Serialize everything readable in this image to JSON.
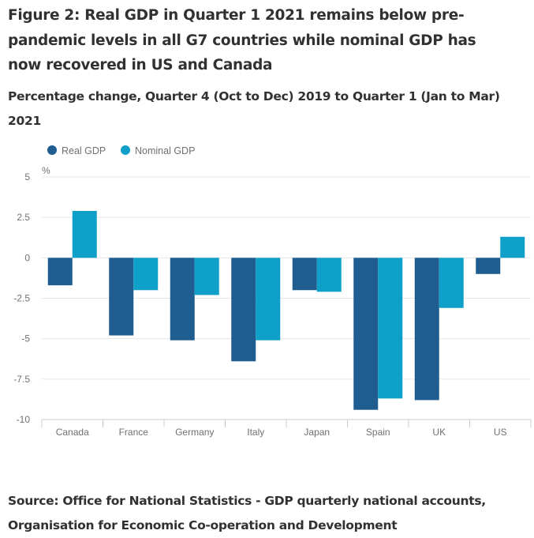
{
  "figure": {
    "title": "Figure 2: Real GDP in Quarter 1 2021 remains below pre-pandemic levels in all G7 countries while nominal GDP has now recovered in US and Canada",
    "subtitle": "Percentage change, Quarter 4 (Oct to Dec) 2019 to Quarter 1 (Jan to Mar) 2021",
    "source": "Source: Office for National Statistics - GDP quarterly national accounts, Organisation for Economic Co-operation and Development"
  },
  "chart_data": {
    "type": "bar",
    "title": "Figure 2: Real GDP in Quarter 1 2021 remains below pre-pandemic levels in all G7 countries while nominal GDP has now recovered in US and Canada",
    "subtitle": "Percentage change, Quarter 4 (Oct to Dec) 2019 to Quarter 1 (Jan to Mar) 2021",
    "xlabel": "",
    "ylabel": "%",
    "categories": [
      "Canada",
      "France",
      "Germany",
      "Italy",
      "Japan",
      "Spain",
      "UK",
      "US"
    ],
    "series": [
      {
        "name": "Real GDP",
        "color": "#1f5c8f",
        "values": [
          -1.7,
          -4.8,
          -5.1,
          -6.4,
          -2.0,
          -9.4,
          -8.8,
          -1.0
        ]
      },
      {
        "name": "Nominal GDP",
        "color": "#0ea0c8",
        "values": [
          2.9,
          -2.0,
          -2.3,
          -5.1,
          -2.1,
          -8.7,
          -3.1,
          1.3
        ]
      }
    ],
    "ylim": [
      -10,
      5
    ],
    "yticks": [
      5,
      2.5,
      0,
      -2.5,
      -5,
      -7.5,
      -10
    ],
    "ytick_labels": [
      "5",
      "2.5",
      "0",
      "-2.5",
      "-5",
      "-7.5",
      "-10"
    ],
    "grid": true,
    "legend_position": "top-left",
    "source": "Source: Office for National Statistics - GDP quarterly national accounts, Organisation for Economic Co-operation and Development"
  }
}
